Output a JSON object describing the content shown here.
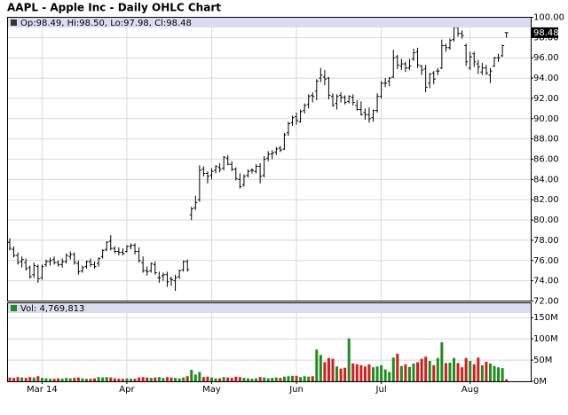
{
  "chart_data": [
    {
      "type": "ohlc",
      "title": "AAPL - Apple Inc - Daily OHLC Chart",
      "info": "Op:98.49, Hi:98.50, Lo:97.98, Cl:98.48",
      "color": "#000000",
      "grid": true,
      "ylim": [
        72,
        100
      ],
      "yticks": [
        {
          "value": 72,
          "label": "72.00"
        },
        {
          "value": 74,
          "label": "74.00"
        },
        {
          "value": 76,
          "label": "76.00"
        },
        {
          "value": 78,
          "label": "78.00"
        },
        {
          "value": 80,
          "label": "80.00"
        },
        {
          "value": 82,
          "label": "82.00"
        },
        {
          "value": 84,
          "label": "84.00"
        },
        {
          "value": 86,
          "label": "86.00"
        },
        {
          "value": 88,
          "label": "88.00"
        },
        {
          "value": 90,
          "label": "90.00"
        },
        {
          "value": 92,
          "label": "92.00"
        },
        {
          "value": 94,
          "label": "94.00"
        },
        {
          "value": 96,
          "label": "96.00"
        },
        {
          "value": 98,
          "label": "98.00"
        },
        {
          "value": 100,
          "label": "100.00"
        }
      ],
      "open": [
        77.8,
        77.1,
        76.5,
        75.9,
        75.8,
        75.3,
        74.6,
        75.4,
        74.3,
        75.6,
        75.9,
        76.1,
        75.8,
        75.6,
        75.9,
        76.4,
        76.6,
        75.7,
        75.0,
        75.4,
        75.9,
        75.6,
        75.7,
        76.4,
        77.1,
        77.9,
        77.2,
        76.9,
        76.8,
        76.9,
        77.4,
        77.5,
        76.9,
        75.8,
        75.0,
        75.0,
        75.6,
        74.3,
        74.5,
        74.6,
        74.2,
        74.0,
        74.4,
        75.1,
        75.9,
        80.5,
        81.2,
        82.0,
        85.0,
        84.6,
        84.4,
        84.9,
        85.2,
        85.1,
        86.1,
        85.5,
        85.0,
        84.0,
        83.5,
        84.4,
        84.9,
        84.8,
        85.3,
        84.4,
        86.1,
        86.5,
        86.7,
        87.1,
        87.0,
        88.6,
        89.6,
        90.2,
        89.7,
        90.8,
        91.4,
        92.3,
        92.7,
        94.0,
        94.1,
        94.0,
        92.2,
        91.5,
        92.3,
        92.1,
        91.7,
        92.1,
        91.3,
        90.9,
        90.6,
        90.4,
        90.1,
        90.8,
        92.2,
        93.5,
        93.7,
        94.1,
        96.1,
        95.2,
        95.4,
        95.0,
        95.9,
        96.6,
        95.2,
        94.9,
        93.5,
        94.5,
        94.7,
        95.0,
        97.2,
        97.0,
        97.8,
        99.0,
        98.4,
        97.2,
        95.0,
        96.4,
        95.4,
        94.6,
        95.0,
        94.3,
        95.2,
        96.0,
        96.2,
        98.49
      ],
      "high": [
        78.2,
        77.4,
        76.8,
        76.4,
        76.2,
        75.5,
        75.8,
        75.6,
        75.6,
        76.1,
        76.3,
        76.4,
        76.0,
        76.2,
        76.7,
        76.9,
        76.8,
        76.0,
        75.5,
        76.0,
        76.2,
        75.9,
        76.3,
        77.1,
        77.9,
        78.5,
        77.4,
        77.3,
        77.2,
        77.5,
        77.7,
        77.7,
        77.3,
        76.4,
        75.4,
        75.8,
        75.9,
        74.9,
        74.8,
        74.9,
        74.4,
        74.6,
        75.1,
        76.0,
        76.1,
        81.3,
        82.4,
        85.4,
        85.3,
        84.8,
        85.1,
        85.4,
        85.6,
        86.3,
        86.4,
        85.8,
        85.2,
        84.6,
        84.5,
        85.0,
        85.1,
        85.5,
        85.6,
        86.3,
        86.8,
        86.9,
        87.2,
        87.3,
        88.6,
        89.7,
        90.3,
        90.6,
        90.9,
        91.5,
        92.4,
        92.6,
        93.9,
        95.0,
        94.8,
        94.1,
        92.5,
        92.4,
        92.6,
        92.3,
        92.3,
        92.4,
        91.8,
        91.7,
        91.0,
        91.1,
        90.9,
        92.5,
        93.7,
        94.0,
        94.1,
        96.8,
        96.3,
        95.9,
        95.6,
        95.9,
        96.9,
        97.0,
        95.3,
        95.3,
        94.5,
        94.7,
        95.0,
        97.8,
        97.4,
        97.9,
        99.4,
        99.4,
        98.7,
        97.4,
        96.6,
        96.6,
        95.8,
        95.5,
        95.3,
        95.0,
        96.1,
        96.4,
        97.3,
        98.5
      ],
      "low": [
        77.0,
        76.3,
        75.6,
        75.3,
        75.0,
        74.2,
        74.3,
        73.8,
        74.1,
        75.4,
        75.5,
        75.6,
        75.4,
        75.3,
        75.7,
        76.1,
        75.6,
        74.6,
        74.8,
        75.2,
        75.4,
        75.2,
        75.4,
        76.2,
        76.9,
        77.0,
        76.7,
        76.5,
        76.5,
        76.8,
        77.1,
        76.6,
        75.8,
        74.8,
        74.5,
        74.8,
        74.6,
        73.8,
        74.0,
        73.4,
        73.5,
        73.0,
        74.2,
        74.9,
        74.9,
        80.0,
        81.0,
        81.8,
        84.3,
        83.6,
        84.0,
        84.6,
        84.7,
        84.9,
        85.4,
        84.8,
        83.9,
        83.1,
        83.3,
        84.2,
        84.6,
        84.6,
        83.6,
        84.2,
        85.8,
        86.0,
        86.4,
        86.7,
        86.9,
        88.3,
        89.3,
        89.4,
        89.6,
        90.5,
        91.0,
        91.6,
        91.8,
        93.6,
        93.3,
        91.9,
        91.2,
        90.9,
        91.6,
        91.4,
        91.5,
        91.3,
        90.8,
        90.3,
        89.9,
        89.6,
        89.7,
        90.6,
        92.0,
        93.1,
        93.2,
        94.0,
        94.9,
        94.8,
        94.6,
        94.8,
        95.7,
        95.0,
        94.3,
        92.6,
        93.0,
        93.4,
        94.3,
        94.9,
        96.6,
        96.8,
        97.6,
        98.1,
        97.9,
        95.2,
        94.8,
        95.1,
        94.4,
        94.3,
        94.3,
        93.5,
        95.1,
        95.6,
        96.1,
        97.98
      ],
      "close": [
        77.2,
        76.5,
        75.8,
        76.1,
        75.2,
        74.4,
        75.5,
        74.2,
        75.4,
        75.9,
        76.0,
        75.8,
        75.6,
        75.9,
        76.5,
        76.6,
        75.8,
        74.9,
        75.3,
        75.9,
        75.6,
        75.4,
        76.2,
        77.0,
        77.8,
        77.2,
        76.9,
        76.8,
        76.7,
        77.4,
        77.5,
        76.9,
        76.0,
        75.0,
        74.9,
        75.7,
        74.8,
        74.3,
        74.6,
        73.9,
        74.1,
        74.3,
        75.0,
        75.9,
        75.1,
        81.1,
        81.7,
        84.9,
        84.6,
        84.3,
        84.8,
        85.3,
        85.0,
        86.2,
        85.5,
        85.0,
        84.1,
        83.3,
        84.3,
        84.8,
        84.9,
        85.3,
        84.3,
        86.0,
        86.5,
        86.6,
        87.0,
        86.9,
        88.4,
        89.5,
        90.1,
        89.8,
        90.7,
        91.3,
        92.2,
        92.2,
        93.7,
        94.3,
        93.9,
        92.3,
        91.3,
        92.2,
        92.1,
        91.6,
        92.2,
        91.6,
        90.9,
        90.4,
        90.4,
        90.0,
        90.8,
        92.2,
        93.5,
        93.5,
        94.0,
        96.0,
        95.3,
        95.4,
        95.0,
        95.2,
        96.5,
        95.3,
        94.8,
        93.1,
        94.4,
        93.9,
        94.7,
        97.2,
        97.0,
        97.7,
        99.0,
        98.4,
        98.2,
        95.6,
        96.1,
        95.6,
        95.1,
        95.0,
        94.5,
        94.7,
        96.0,
        96.0,
        97.2,
        98.48
      ]
    },
    {
      "type": "bar",
      "info": "Vol: 4,769,813",
      "up_color": "#1e8c1e",
      "down_color": "#d01e1e",
      "grid": true,
      "ylim": [
        0,
        185000000
      ],
      "yticks": [
        {
          "value": 0,
          "label": "0M"
        },
        {
          "value": 50000000,
          "label": "50M"
        },
        {
          "value": 100000000,
          "label": "100M"
        },
        {
          "value": 150000000,
          "label": "150M"
        }
      ],
      "categories": [
        null,
        null,
        null,
        null,
        null,
        null,
        null,
        null,
        "Mar 14",
        null,
        null,
        null,
        null,
        null,
        null,
        null,
        null,
        null,
        null,
        null,
        null,
        null,
        null,
        null,
        null,
        null,
        null,
        null,
        null,
        "Apr",
        null,
        null,
        null,
        null,
        null,
        null,
        null,
        null,
        null,
        null,
        null,
        null,
        null,
        null,
        null,
        null,
        null,
        null,
        null,
        null,
        "May",
        null,
        null,
        null,
        null,
        null,
        null,
        null,
        null,
        null,
        null,
        null,
        null,
        null,
        null,
        null,
        null,
        null,
        null,
        null,
        null,
        "Jun",
        null,
        null,
        null,
        null,
        null,
        null,
        null,
        null,
        null,
        null,
        null,
        null,
        null,
        null,
        null,
        null,
        null,
        null,
        null,
        null,
        "Jul",
        null,
        null,
        null,
        null,
        null,
        null,
        null,
        null,
        null,
        null,
        null,
        null,
        null,
        null,
        null,
        null,
        null,
        null,
        null,
        null,
        null,
        "Aug",
        null,
        null,
        null,
        null,
        null,
        null,
        null,
        null,
        null
      ],
      "values": [
        9000000,
        8000000,
        10000000,
        9000000,
        8000000,
        10000000,
        9000000,
        12000000,
        8000000,
        7000000,
        6000000,
        6000000,
        7000000,
        6000000,
        8000000,
        7000000,
        8000000,
        9000000,
        7000000,
        6000000,
        6000000,
        7000000,
        10000000,
        9000000,
        10000000,
        9000000,
        7000000,
        6000000,
        6000000,
        7000000,
        6000000,
        6000000,
        9000000,
        10000000,
        9000000,
        8000000,
        9000000,
        10000000,
        8000000,
        10000000,
        9000000,
        8000000,
        7000000,
        9000000,
        12000000,
        27000000,
        16000000,
        22000000,
        10000000,
        11000000,
        9000000,
        7000000,
        7000000,
        10000000,
        9000000,
        8000000,
        11000000,
        10000000,
        8000000,
        7000000,
        6000000,
        7000000,
        10000000,
        9000000,
        7000000,
        8000000,
        9000000,
        8000000,
        11000000,
        12000000,
        13000000,
        13000000,
        10000000,
        12000000,
        11000000,
        12000000,
        75000000,
        62000000,
        45000000,
        55000000,
        53000000,
        35000000,
        30000000,
        32000000,
        101000000,
        42000000,
        40000000,
        38000000,
        35000000,
        40000000,
        33000000,
        35000000,
        38000000,
        28000000,
        22000000,
        56000000,
        65000000,
        36000000,
        40000000,
        34000000,
        42000000,
        45000000,
        53000000,
        58000000,
        48000000,
        38000000,
        55000000,
        92000000,
        43000000,
        44000000,
        55000000,
        43000000,
        33000000,
        55000000,
        48000000,
        40000000,
        56000000,
        38000000,
        46000000,
        42000000,
        36000000,
        33000000,
        31000000,
        4769813
      ]
    }
  ]
}
